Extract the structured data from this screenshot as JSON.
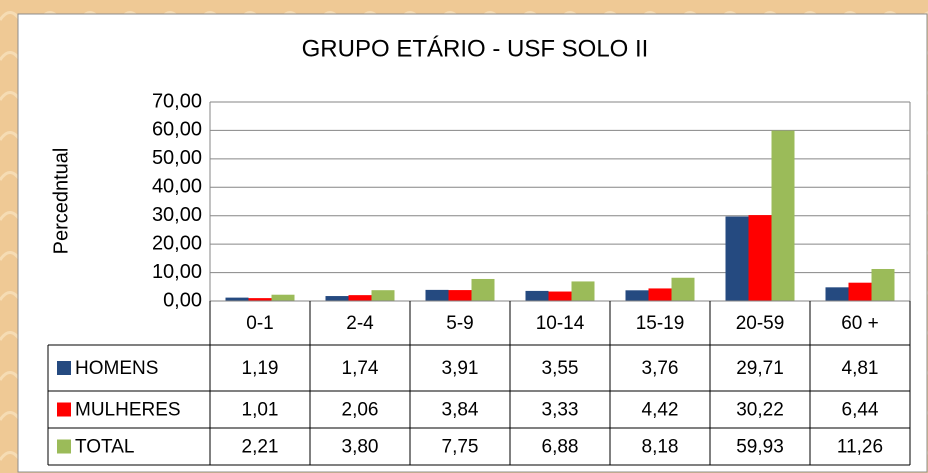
{
  "chart_data": {
    "type": "bar",
    "title": "GRUPO ETÁRIO - USF SOLO II",
    "y_label": "Percedntual",
    "categories": [
      "0-1",
      "2-4",
      "5-9",
      "10-14",
      "15-19",
      "20-59",
      "60 +"
    ],
    "series": [
      {
        "name": "HOMENS",
        "color": "#254a80",
        "values": [
          1.19,
          1.74,
          3.91,
          3.55,
          3.76,
          29.71,
          4.81
        ],
        "value_labels": [
          "1,19",
          "1,74",
          "3,91",
          "3,55",
          "3,76",
          "29,71",
          "4,81"
        ]
      },
      {
        "name": "MULHERES",
        "color": "#ff0000",
        "values": [
          1.01,
          2.06,
          3.84,
          3.33,
          4.42,
          30.22,
          6.44
        ],
        "value_labels": [
          "1,01",
          "2,06",
          "3,84",
          "3,33",
          "4,42",
          "30,22",
          "6,44"
        ]
      },
      {
        "name": "TOTAL",
        "color": "#9bbb59",
        "values": [
          2.21,
          3.8,
          7.75,
          6.88,
          8.18,
          59.93,
          11.26
        ],
        "value_labels": [
          "2,21",
          "3,80",
          "7,75",
          "6,88",
          "8,18",
          "59,93",
          "11,26"
        ]
      }
    ],
    "ylim": [
      0,
      70
    ],
    "yticks": [
      {
        "value": 0,
        "label": "0,00"
      },
      {
        "value": 10,
        "label": "10,00"
      },
      {
        "value": 20,
        "label": "20,00"
      },
      {
        "value": 30,
        "label": "30,00"
      },
      {
        "value": 40,
        "label": "40,00"
      },
      {
        "value": 50,
        "label": "50,00"
      },
      {
        "value": 60,
        "label": "60,00"
      },
      {
        "value": 70,
        "label": "70,00"
      }
    ],
    "grid": true
  }
}
